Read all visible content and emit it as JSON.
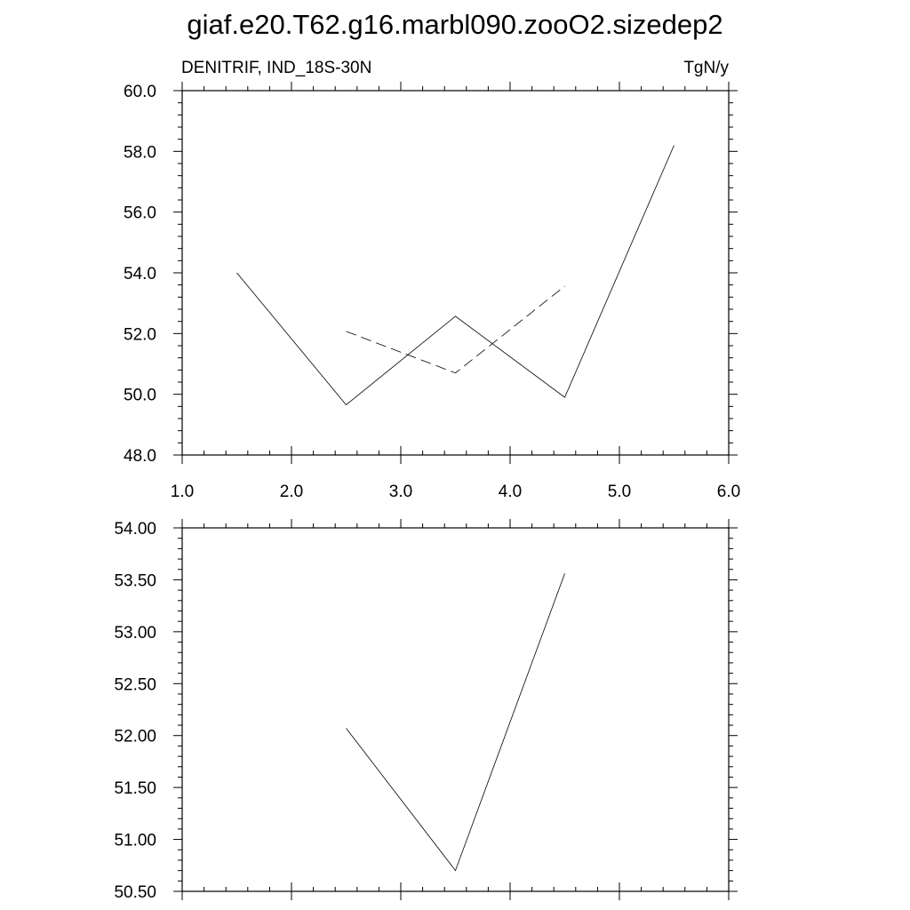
{
  "title": "giaf.e20.T62.g16.marbl090.zooO2.sizedep2",
  "chart_data": [
    {
      "type": "line",
      "left_label": "DENITRIF, IND_18S-30N",
      "right_label": "TgN/y",
      "xlim": [
        1.0,
        6.0
      ],
      "ylim": [
        48.0,
        60.0
      ],
      "x_ticks": [
        1.0,
        2.0,
        3.0,
        4.0,
        5.0,
        6.0
      ],
      "x_tick_labels": [
        "1.0",
        "2.0",
        "3.0",
        "4.0",
        "5.0",
        "6.0"
      ],
      "y_ticks": [
        48.0,
        50.0,
        52.0,
        54.0,
        56.0,
        58.0,
        60.0
      ],
      "y_tick_labels": [
        "48.0",
        "50.0",
        "52.0",
        "54.0",
        "56.0",
        "58.0",
        "60.0"
      ],
      "series": [
        {
          "style": "solid",
          "x": [
            1.5,
            2.5,
            3.5,
            4.5,
            5.5
          ],
          "y": [
            54.0,
            49.65,
            52.57,
            49.9,
            58.2
          ]
        },
        {
          "style": "dashed",
          "x": [
            2.5,
            3.5,
            4.5
          ],
          "y": [
            52.07,
            50.7,
            53.56
          ]
        }
      ]
    },
    {
      "type": "line",
      "xlim": [
        1.0,
        6.0
      ],
      "ylim": [
        50.5,
        54.0
      ],
      "x_ticks": [
        1.0,
        2.0,
        3.0,
        4.0,
        5.0,
        6.0
      ],
      "y_ticks": [
        50.5,
        51.0,
        51.5,
        52.0,
        52.5,
        53.0,
        53.5,
        54.0
      ],
      "y_tick_labels": [
        "50.50",
        "51.00",
        "51.50",
        "52.00",
        "52.50",
        "53.00",
        "53.50",
        "54.00"
      ],
      "series": [
        {
          "style": "solid",
          "x": [
            2.5,
            3.5,
            4.5
          ],
          "y": [
            52.07,
            50.7,
            53.56
          ]
        }
      ]
    }
  ]
}
